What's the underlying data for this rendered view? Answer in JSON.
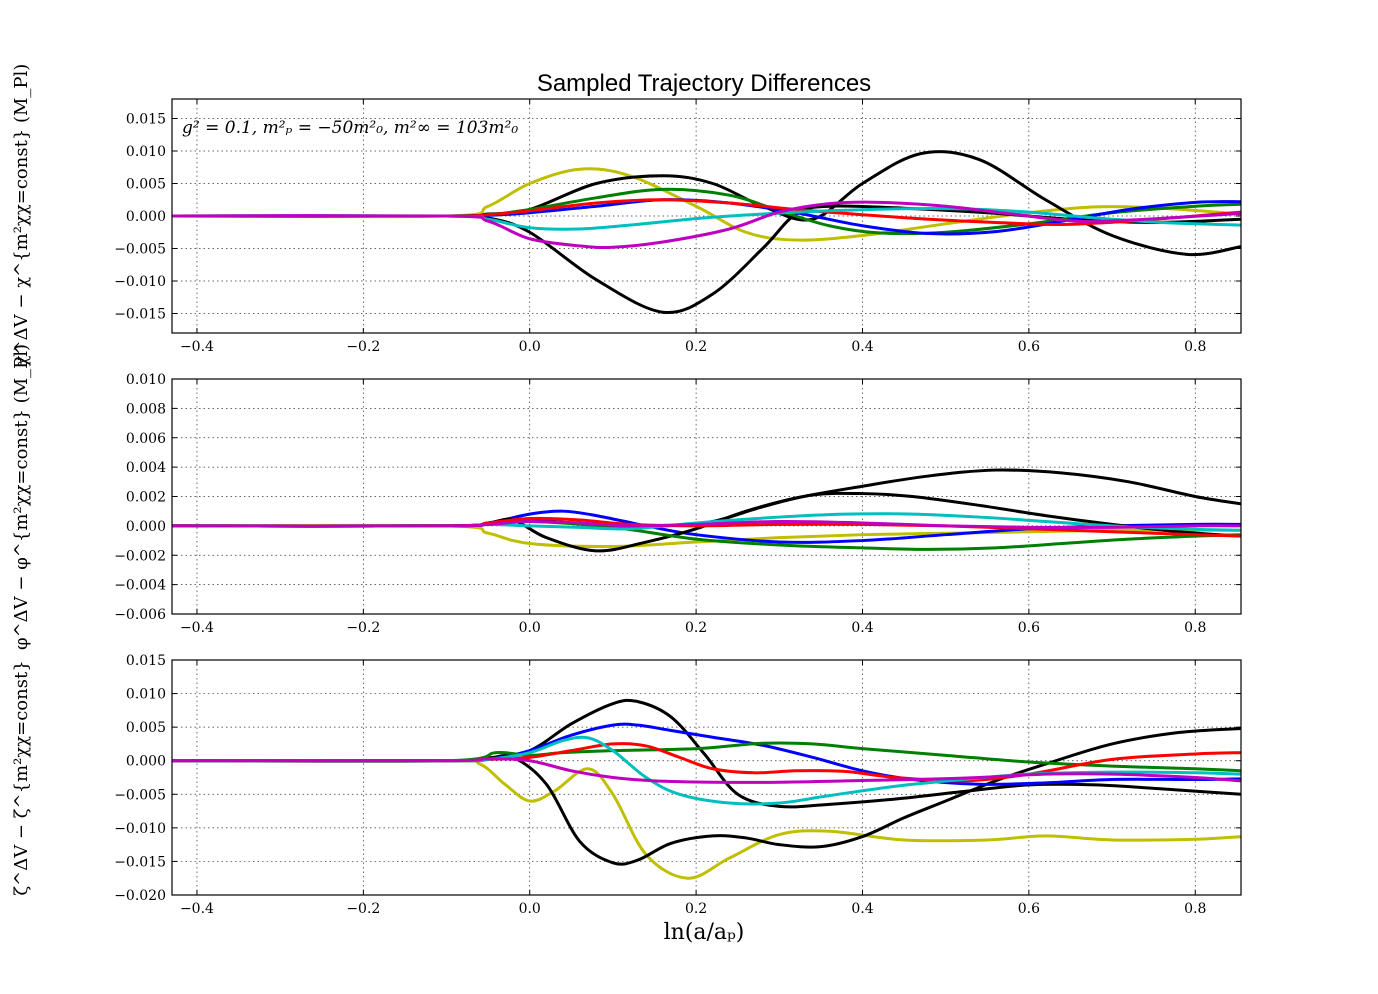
{
  "title": "Sampled Trajectory Differences",
  "annotation": "g² = 0.1, m²ₚ = −50m²₀, m²∞ = 103m²₀",
  "xlabel": "ln(a/aₚ)",
  "colors": {
    "b": "#0000ff",
    "g": "#007f00",
    "r": "#ff0000",
    "c": "#00bfbf",
    "m": "#bf00bf",
    "y": "#bfbf00",
    "k": "#000000"
  },
  "chart_data": [
    {
      "type": "line",
      "ylabel": "χ^ΔV − χ^{m²χχ=const} (M_Pl)",
      "xlim": [
        -0.43,
        0.855
      ],
      "ylim": [
        -0.018,
        0.018
      ],
      "xticks": [
        "−0.4",
        "−0.2",
        "0.0",
        "0.2",
        "0.4",
        "0.6",
        "0.8"
      ],
      "xtick_values": [
        -0.4,
        -0.2,
        0.0,
        0.2,
        0.4,
        0.6,
        0.8
      ],
      "yticks": [
        "−0.015",
        "−0.010",
        "−0.005",
        "0.000",
        "0.005",
        "0.010",
        "0.015"
      ],
      "ytick_values": [
        -0.015,
        -0.01,
        -0.005,
        0.0,
        0.005,
        0.01,
        0.015
      ],
      "grid": true,
      "series": [
        {
          "color": "y",
          "x": [
            -0.43,
            -0.1,
            -0.05,
            0.0,
            0.06,
            0.12,
            0.2,
            0.26,
            0.32,
            0.4,
            0.5,
            0.6,
            0.68,
            0.76,
            0.855
          ],
          "y": [
            0,
            0,
            0.0015,
            0.005,
            0.0072,
            0.0062,
            0.0015,
            -0.0025,
            -0.0037,
            -0.003,
            -0.0012,
            0.0005,
            0.0014,
            0.0012,
            0.0003
          ]
        },
        {
          "color": "k",
          "x": [
            -0.43,
            -0.1,
            -0.05,
            0.0,
            0.08,
            0.16,
            0.22,
            0.28,
            0.34,
            0.4,
            0.47,
            0.54,
            0.62,
            0.7,
            0.79,
            0.855
          ],
          "y": [
            0,
            0,
            0.0003,
            0.001,
            0.005,
            0.0062,
            0.005,
            0.0015,
            -0.0005,
            0.005,
            0.0096,
            0.0087,
            0.0025,
            -0.003,
            -0.0059,
            -0.0047
          ]
        },
        {
          "color": "k",
          "x": [
            -0.43,
            -0.1,
            -0.05,
            0.0,
            0.08,
            0.16,
            0.22,
            0.28,
            0.32,
            0.36,
            0.45,
            0.55,
            0.65,
            0.75,
            0.855
          ],
          "y": [
            0,
            0,
            -0.0003,
            -0.0025,
            -0.0098,
            -0.0148,
            -0.012,
            -0.005,
            0.0003,
            0.0015,
            0.0012,
            0.0005,
            -0.0005,
            -0.001,
            -0.0005
          ]
        },
        {
          "color": "g",
          "x": [
            -0.43,
            -0.1,
            -0.05,
            0.0,
            0.08,
            0.16,
            0.24,
            0.3,
            0.36,
            0.42,
            0.5,
            0.6,
            0.7,
            0.8,
            0.855
          ],
          "y": [
            0,
            0,
            0.0002,
            0.001,
            0.0028,
            0.0041,
            0.0032,
            0.0008,
            -0.0015,
            -0.0026,
            -0.0025,
            -0.0012,
            0.0005,
            0.0015,
            0.0018
          ]
        },
        {
          "color": "b",
          "x": [
            -0.43,
            -0.1,
            -0.05,
            0.0,
            0.08,
            0.16,
            0.24,
            0.32,
            0.4,
            0.48,
            0.56,
            0.64,
            0.72,
            0.8,
            0.855
          ],
          "y": [
            0,
            0,
            0.0001,
            0.0005,
            0.0015,
            0.0025,
            0.002,
            0.0005,
            -0.0015,
            -0.0027,
            -0.0024,
            -0.0008,
            0.001,
            0.0021,
            0.0022
          ]
        },
        {
          "color": "r",
          "x": [
            -0.43,
            -0.1,
            -0.05,
            0.0,
            0.08,
            0.16,
            0.24,
            0.32,
            0.4,
            0.48,
            0.56,
            0.64,
            0.72,
            0.8,
            0.855
          ],
          "y": [
            0,
            0,
            0.0002,
            0.0008,
            0.002,
            0.0025,
            0.002,
            0.001,
            0.0002,
            -0.0005,
            -0.001,
            -0.0013,
            -0.0008,
            0,
            0.0006
          ]
        },
        {
          "color": "c",
          "x": [
            -0.43,
            -0.1,
            -0.05,
            0.0,
            0.06,
            0.12,
            0.2,
            0.28,
            0.36,
            0.44,
            0.52,
            0.6,
            0.68,
            0.76,
            0.855
          ],
          "y": [
            0,
            0,
            -0.0005,
            -0.0018,
            -0.002,
            -0.0014,
            -0.0004,
            0.0003,
            0.0008,
            0.0011,
            0.0011,
            0.0006,
            -0.0003,
            -0.001,
            -0.0014
          ]
        },
        {
          "color": "m",
          "x": [
            -0.43,
            -0.1,
            -0.05,
            0.0,
            0.06,
            0.1,
            0.16,
            0.24,
            0.3,
            0.36,
            0.42,
            0.5,
            0.58,
            0.66,
            0.74,
            0.855
          ],
          "y": [
            0,
            0,
            -0.0008,
            -0.0035,
            -0.0046,
            -0.0048,
            -0.004,
            -0.002,
            0.0006,
            0.0019,
            0.0021,
            0.0015,
            0.0003,
            -0.0008,
            -0.0005,
            0.0004
          ]
        }
      ]
    },
    {
      "type": "line",
      "ylabel": "φ^ΔV − φ^{m²χχ=const} (M_Pl)",
      "xlim": [
        -0.43,
        0.855
      ],
      "ylim": [
        -0.006,
        0.01
      ],
      "xticks": [
        "−0.4",
        "−0.2",
        "0.0",
        "0.2",
        "0.4",
        "0.6",
        "0.8"
      ],
      "xtick_values": [
        -0.4,
        -0.2,
        0.0,
        0.2,
        0.4,
        0.6,
        0.8
      ],
      "yticks": [
        "−0.006",
        "−0.004",
        "−0.002",
        "0.000",
        "0.002",
        "0.004",
        "0.006",
        "0.008",
        "0.010"
      ],
      "ytick_values": [
        -0.006,
        -0.004,
        -0.002,
        0.0,
        0.002,
        0.004,
        0.006,
        0.008,
        0.01
      ],
      "grid": true,
      "series": [
        {
          "color": "y",
          "x": [
            -0.43,
            -0.1,
            -0.05,
            0.0,
            0.1,
            0.2,
            0.3,
            0.4,
            0.5,
            0.6,
            0.7,
            0.8,
            0.855
          ],
          "y": [
            0,
            0,
            -0.0005,
            -0.0012,
            -0.0014,
            -0.0011,
            -0.0008,
            -0.0006,
            -0.0005,
            -0.0004,
            -0.0003,
            -0.0003,
            -0.0003
          ]
        },
        {
          "color": "b",
          "x": [
            -0.43,
            -0.1,
            -0.05,
            0.0,
            0.04,
            0.08,
            0.14,
            0.2,
            0.3,
            0.4,
            0.5,
            0.6,
            0.7,
            0.8,
            0.855
          ],
          "y": [
            0,
            0,
            0.0002,
            0.0008,
            0.001,
            0.0007,
            0,
            -0.0006,
            -0.0011,
            -0.001,
            -0.0006,
            -0.0002,
            0,
            0.0001,
            0.0001
          ]
        },
        {
          "color": "k",
          "x": [
            -0.43,
            -0.1,
            -0.05,
            -0.02,
            0.02,
            0.08,
            0.14,
            0.2,
            0.26,
            0.32,
            0.4,
            0.48,
            0.56,
            0.64,
            0.72,
            0.8,
            0.855
          ],
          "y": [
            0,
            0,
            0.0002,
            0.0004,
            -0.0008,
            -0.0017,
            -0.0011,
            -0.0002,
            0.001,
            0.0019,
            0.0027,
            0.0034,
            0.0038,
            0.0036,
            0.003,
            0.002,
            0.0015
          ]
        },
        {
          "color": "k",
          "x": [
            -0.43,
            -0.1,
            -0.05,
            0.0,
            0.05,
            0.1,
            0.16,
            0.22,
            0.28,
            0.34,
            0.4,
            0.46,
            0.54,
            0.62,
            0.7,
            0.78,
            0.855
          ],
          "y": [
            0,
            0,
            0.0002,
            0.0004,
            0.0002,
            0,
            0,
            0.0003,
            0.0013,
            0.0021,
            0.0022,
            0.002,
            0.0014,
            0.0007,
            0.0001,
            -0.0004,
            -0.0007
          ]
        },
        {
          "color": "g",
          "x": [
            -0.43,
            -0.1,
            -0.05,
            0.0,
            0.1,
            0.2,
            0.3,
            0.4,
            0.48,
            0.56,
            0.64,
            0.72,
            0.8,
            0.855
          ],
          "y": [
            0,
            0,
            0.0001,
            0.0003,
            -0.0001,
            -0.0009,
            -0.0013,
            -0.0015,
            -0.0016,
            -0.0015,
            -0.0012,
            -0.0009,
            -0.0007,
            -0.0006
          ]
        },
        {
          "color": "c",
          "x": [
            -0.43,
            -0.1,
            -0.05,
            0.0,
            0.06,
            0.12,
            0.2,
            0.3,
            0.38,
            0.46,
            0.54,
            0.62,
            0.7,
            0.78,
            0.855
          ],
          "y": [
            0,
            0,
            0.0001,
            0,
            -0.0001,
            -0.0002,
            0.0002,
            0.0006,
            0.0008,
            0.0008,
            0.0006,
            0.0003,
            0,
            -0.0002,
            -0.0003
          ]
        },
        {
          "color": "r",
          "x": [
            -0.43,
            -0.1,
            -0.05,
            0.0,
            0.06,
            0.12,
            0.2,
            0.3,
            0.4,
            0.5,
            0.6,
            0.7,
            0.8,
            0.855
          ],
          "y": [
            0,
            0,
            0.0002,
            0.0005,
            0.0004,
            0.0001,
            0,
            0.0001,
            0.0001,
            0,
            -0.0002,
            -0.0004,
            -0.0006,
            -0.0007
          ]
        },
        {
          "color": "m",
          "x": [
            -0.43,
            -0.1,
            -0.05,
            0.0,
            0.06,
            0.12,
            0.2,
            0.3,
            0.4,
            0.5,
            0.6,
            0.7,
            0.8,
            0.855
          ],
          "y": [
            0,
            0,
            0.0001,
            0.0003,
            0.0002,
            0,
            0.0001,
            0.0003,
            0.0002,
            0,
            -0.0001,
            -0.0001,
            0,
            0
          ]
        }
      ]
    },
    {
      "type": "line",
      "ylabel": "ζ^ΔV − ζ^{m²χχ=const}",
      "xlabel": "ln(a/aₚ)",
      "xlim": [
        -0.43,
        0.855
      ],
      "ylim": [
        -0.02,
        0.015
      ],
      "xticks": [
        "−0.4",
        "−0.2",
        "0.0",
        "0.2",
        "0.4",
        "0.6",
        "0.8"
      ],
      "xtick_values": [
        -0.4,
        -0.2,
        0.0,
        0.2,
        0.4,
        0.6,
        0.8
      ],
      "yticks": [
        "−0.020",
        "−0.015",
        "−0.010",
        "−0.005",
        "0.000",
        "0.005",
        "0.010",
        "0.015"
      ],
      "ytick_values": [
        -0.02,
        -0.015,
        -0.01,
        -0.005,
        0.0,
        0.005,
        0.01,
        0.015
      ],
      "grid": true,
      "series": [
        {
          "color": "y",
          "x": [
            -0.43,
            -0.1,
            -0.06,
            -0.03,
            0.0,
            0.03,
            0.07,
            0.1,
            0.14,
            0.19,
            0.24,
            0.3,
            0.36,
            0.45,
            0.55,
            0.62,
            0.7,
            0.8,
            0.855
          ],
          "y": [
            0,
            0,
            -0.0005,
            -0.0035,
            -0.006,
            -0.0045,
            -0.0012,
            -0.005,
            -0.014,
            -0.0175,
            -0.0145,
            -0.011,
            -0.0105,
            -0.0118,
            -0.0118,
            -0.0112,
            -0.0118,
            -0.0117,
            -0.0113
          ]
        },
        {
          "color": "k",
          "x": [
            -0.43,
            -0.1,
            -0.05,
            -0.02,
            0.02,
            0.06,
            0.1,
            0.13,
            0.17,
            0.22,
            0.26,
            0.3,
            0.35,
            0.4,
            0.45,
            0.5,
            0.56,
            0.62,
            0.7,
            0.78,
            0.855
          ],
          "y": [
            0,
            0,
            0.0004,
            0.0005,
            -0.0035,
            -0.012,
            -0.0152,
            -0.0148,
            -0.0123,
            -0.0112,
            -0.0115,
            -0.0125,
            -0.0128,
            -0.0113,
            -0.0085,
            -0.006,
            -0.003,
            -0.0005,
            0.0025,
            0.0042,
            0.0048
          ]
        },
        {
          "color": "k",
          "x": [
            -0.43,
            -0.1,
            -0.05,
            0.0,
            0.05,
            0.1,
            0.13,
            0.17,
            0.21,
            0.25,
            0.3,
            0.36,
            0.44,
            0.52,
            0.6,
            0.68,
            0.76,
            0.855
          ],
          "y": [
            0,
            0,
            0.0004,
            0.0015,
            0.0055,
            0.0085,
            0.0088,
            0.0065,
            0.001,
            -0.005,
            -0.0068,
            -0.0065,
            -0.0057,
            -0.0046,
            -0.0036,
            -0.0036,
            -0.0042,
            -0.005
          ]
        },
        {
          "color": "b",
          "x": [
            -0.43,
            -0.1,
            -0.05,
            0.0,
            0.05,
            0.1,
            0.13,
            0.17,
            0.22,
            0.28,
            0.34,
            0.4,
            0.46,
            0.54,
            0.62,
            0.7,
            0.8,
            0.855
          ],
          "y": [
            0,
            0,
            0.0002,
            0.0015,
            0.0038,
            0.0053,
            0.0053,
            0.0045,
            0.0035,
            0.0023,
            0.0005,
            -0.0015,
            -0.0028,
            -0.0035,
            -0.0033,
            -0.0028,
            -0.0028,
            -0.0027
          ]
        },
        {
          "color": "g",
          "x": [
            -0.43,
            -0.1,
            -0.04,
            0.0,
            0.04,
            0.1,
            0.2,
            0.28,
            0.34,
            0.4,
            0.5,
            0.6,
            0.7,
            0.8,
            0.855
          ],
          "y": [
            0,
            0,
            0.0012,
            0.0008,
            0.0012,
            0.0015,
            0.0018,
            0.0026,
            0.0025,
            0.0018,
            0.0008,
            -0.0002,
            -0.0008,
            -0.0012,
            -0.0015
          ]
        },
        {
          "color": "r",
          "x": [
            -0.43,
            -0.1,
            -0.05,
            0.0,
            0.05,
            0.1,
            0.14,
            0.18,
            0.22,
            0.27,
            0.32,
            0.38,
            0.44,
            0.52,
            0.6,
            0.7,
            0.8,
            0.855
          ],
          "y": [
            0,
            0,
            0.0002,
            0.0005,
            0.0015,
            0.0025,
            0.0022,
            0.0005,
            -0.0012,
            -0.0018,
            -0.0015,
            -0.0016,
            -0.0025,
            -0.003,
            -0.002,
            0.0002,
            0.001,
            0.0012
          ]
        },
        {
          "color": "c",
          "x": [
            -0.43,
            -0.1,
            -0.05,
            0.0,
            0.04,
            0.07,
            0.1,
            0.14,
            0.18,
            0.24,
            0.3,
            0.36,
            0.44,
            0.52,
            0.6,
            0.7,
            0.8,
            0.855
          ],
          "y": [
            0,
            0,
            0.0002,
            0.0012,
            0.003,
            0.0034,
            0.0015,
            -0.0025,
            -0.005,
            -0.0063,
            -0.0063,
            -0.0052,
            -0.0038,
            -0.0028,
            -0.002,
            -0.0017,
            -0.0018,
            -0.002
          ]
        },
        {
          "color": "m",
          "x": [
            -0.43,
            -0.1,
            -0.05,
            0.0,
            0.05,
            0.1,
            0.15,
            0.22,
            0.3,
            0.38,
            0.46,
            0.54,
            0.62,
            0.7,
            0.8,
            0.855
          ],
          "y": [
            0,
            0,
            0.0003,
            0,
            -0.0015,
            -0.0025,
            -0.003,
            -0.0032,
            -0.0032,
            -0.003,
            -0.0028,
            -0.0025,
            -0.002,
            -0.002,
            -0.0025,
            -0.003
          ]
        }
      ]
    }
  ]
}
